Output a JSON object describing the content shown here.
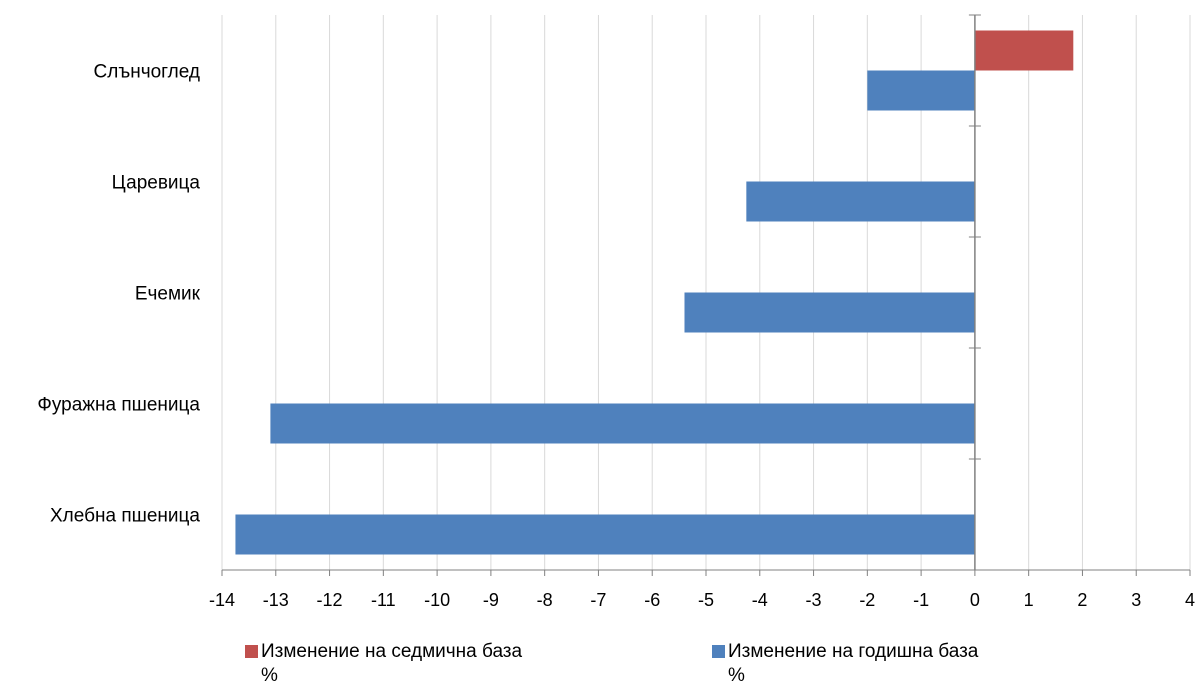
{
  "chart_data": {
    "type": "bar",
    "orientation": "horizontal",
    "categories": [
      "Слънчоглед",
      "Царевица",
      "Ечемик",
      "Фуражна пшеница",
      "Хлебна пшеница"
    ],
    "series": [
      {
        "name": "Изменение на седмична база\n%",
        "color": "#c0504d",
        "values": [
          1.83,
          null,
          null,
          null,
          null
        ]
      },
      {
        "name": "Изменение на годишна база\n%",
        "color": "#4f81bd",
        "values": [
          -2.0,
          -4.25,
          -5.4,
          -13.1,
          -13.75
        ]
      }
    ],
    "xlim": [
      -14,
      4
    ],
    "xticks": [
      "-14",
      "-13",
      "-12",
      "-11",
      "-10",
      "-9",
      "-8",
      "-7",
      "-6",
      "-5",
      "-4",
      "-3",
      "-2",
      "-1",
      "0",
      "1",
      "2",
      "3",
      "4"
    ],
    "grid": true,
    "legend_position": "bottom"
  }
}
